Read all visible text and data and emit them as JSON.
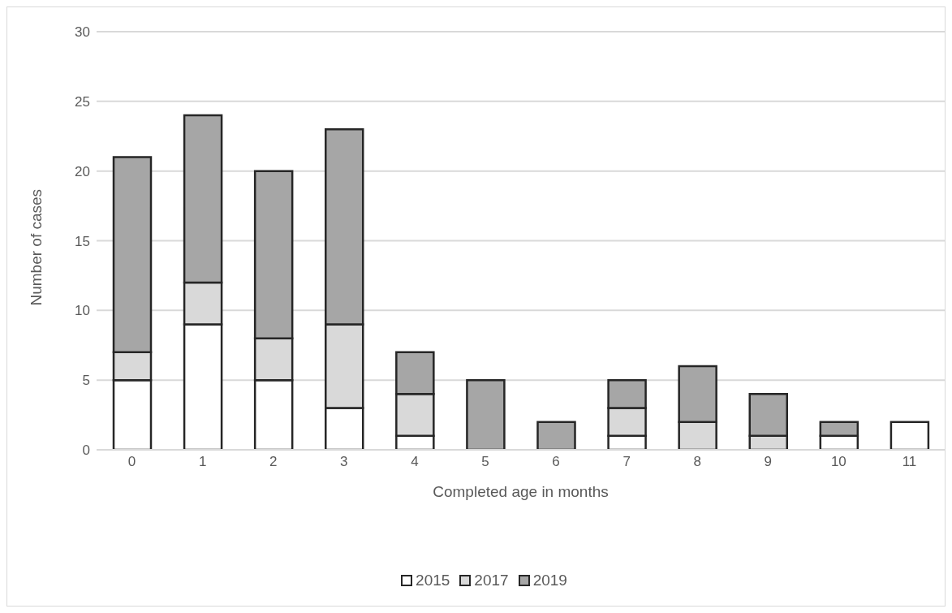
{
  "chart_data": {
    "type": "bar",
    "stacked": true,
    "xlabel": "Completed age in months",
    "ylabel": "Number of cases",
    "categories": [
      "0",
      "1",
      "2",
      "3",
      "4",
      "5",
      "6",
      "7",
      "8",
      "9",
      "10",
      "11"
    ],
    "series": [
      {
        "name": "2015",
        "color": "#ffffff",
        "values": [
          5,
          9,
          5,
          3,
          1,
          0,
          0,
          1,
          0,
          0,
          1,
          2
        ]
      },
      {
        "name": "2017",
        "color": "#d9d9d9",
        "values": [
          2,
          3,
          3,
          6,
          3,
          0,
          0,
          2,
          2,
          1,
          0,
          0
        ]
      },
      {
        "name": "2019",
        "color": "#a6a6a6",
        "values": [
          14,
          12,
          12,
          14,
          3,
          5,
          2,
          2,
          4,
          3,
          1,
          0
        ]
      }
    ],
    "ylim": [
      0,
      30
    ],
    "yticks": [
      0,
      5,
      10,
      15,
      20,
      25,
      30
    ],
    "grid": "y",
    "legend": "bottom"
  }
}
